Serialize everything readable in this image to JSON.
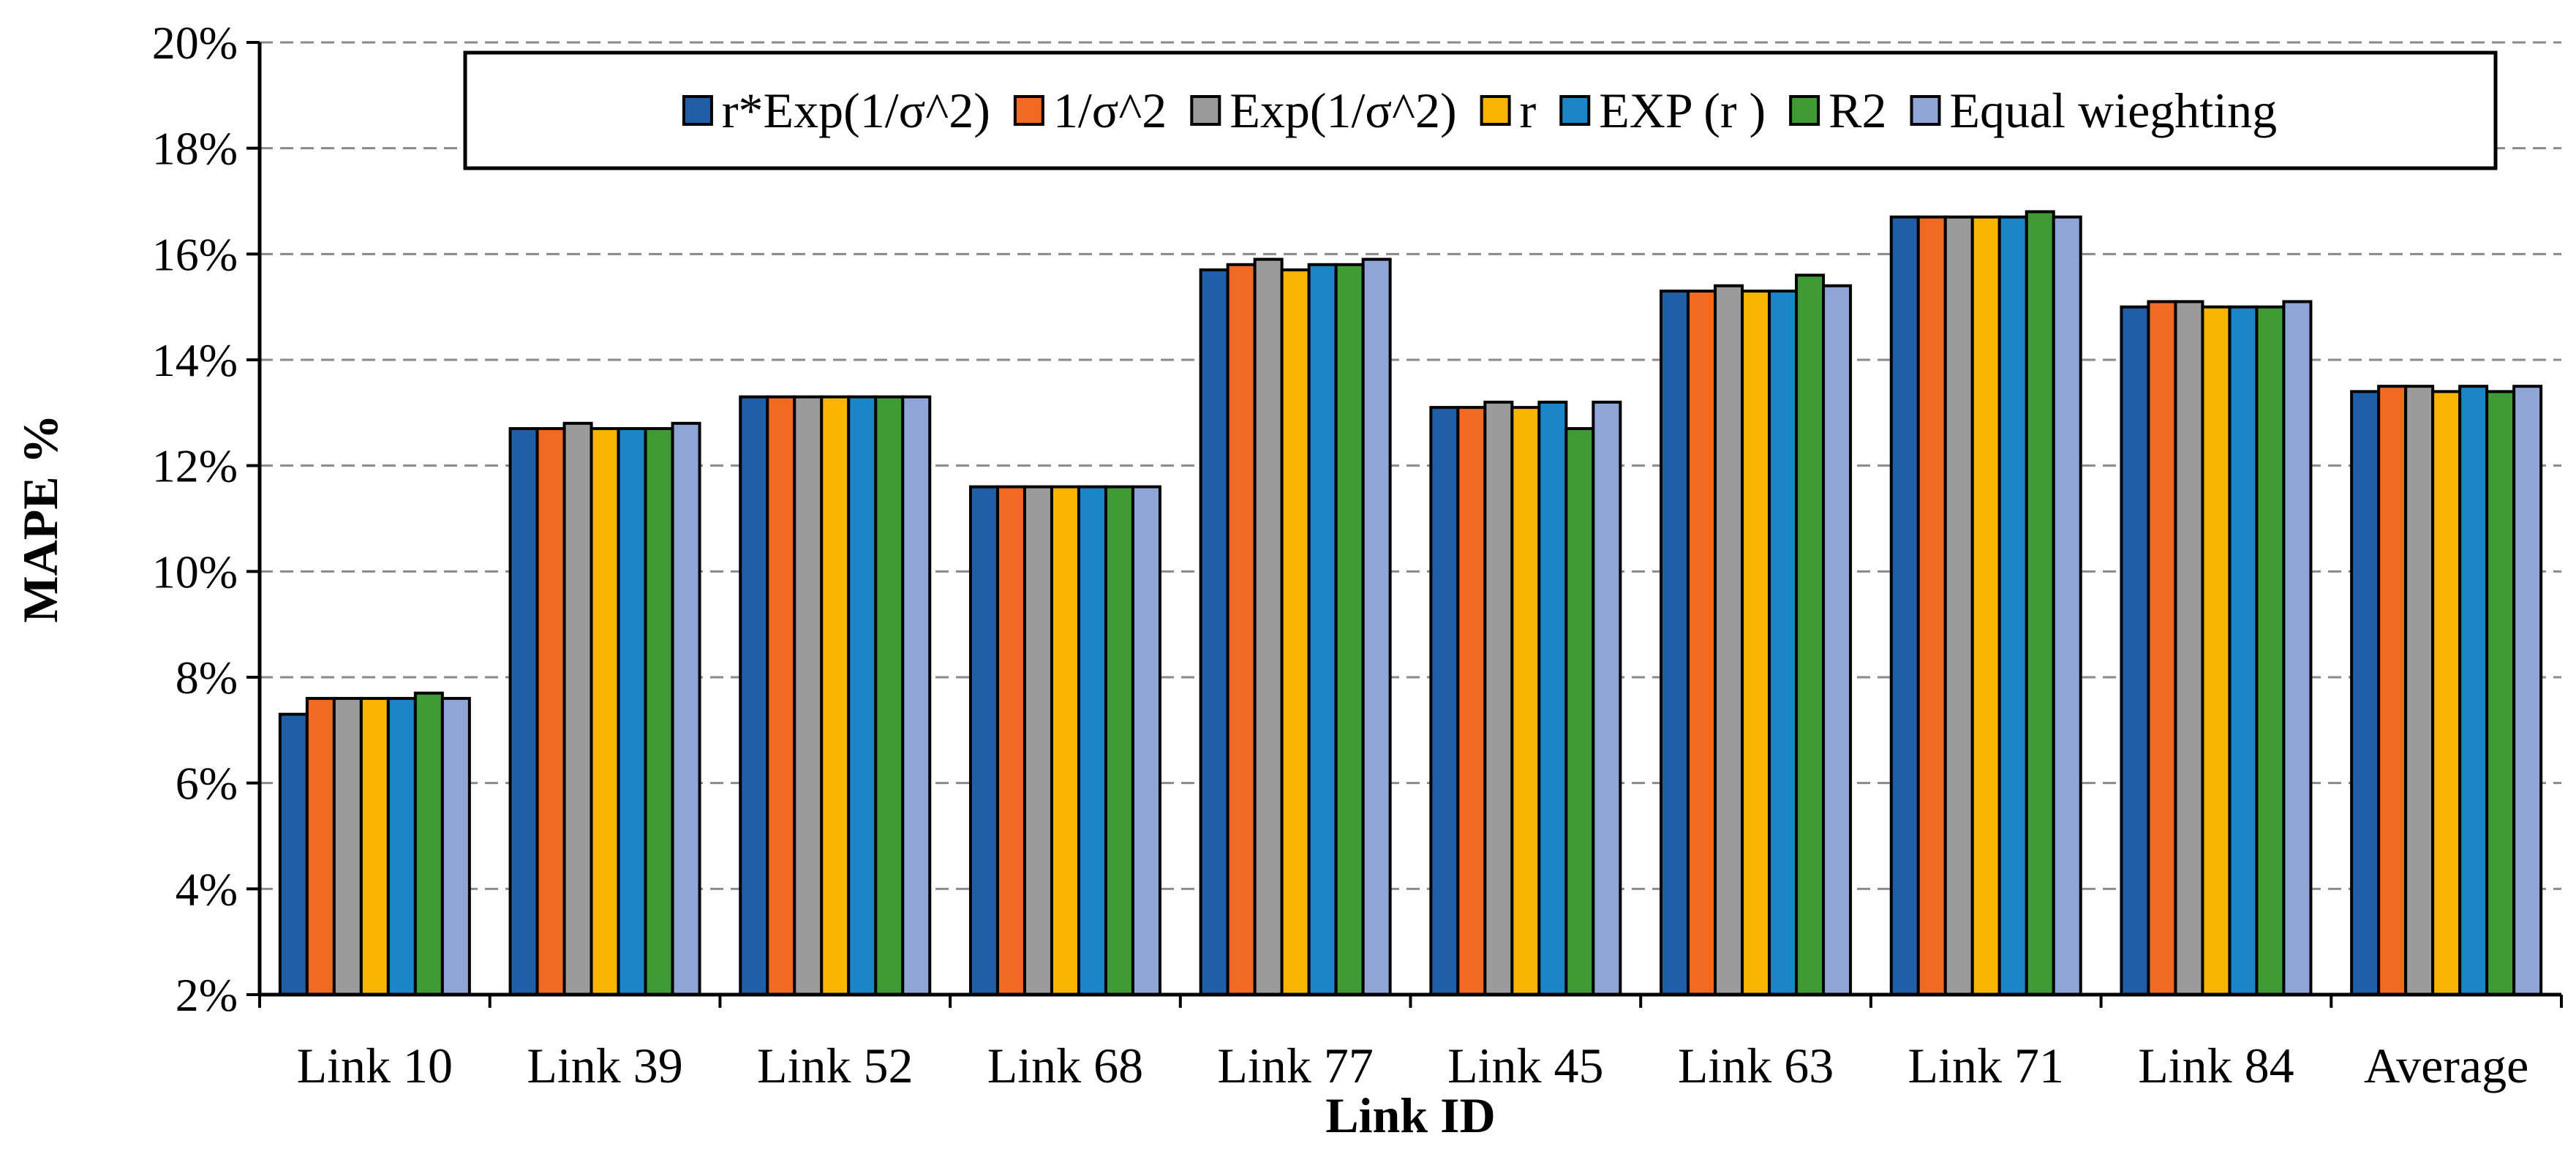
{
  "chart_data": {
    "type": "bar",
    "title": "",
    "xlabel": "Link ID",
    "ylabel": "MAPE %",
    "ylim": [
      0.02,
      0.2
    ],
    "yticks": [
      0.02,
      0.04,
      0.06,
      0.08,
      0.1,
      0.12,
      0.14,
      0.16,
      0.18,
      0.2
    ],
    "ytick_labels": [
      "2%",
      "4%",
      "6%",
      "8%",
      "10%",
      "12%",
      "14%",
      "16%",
      "18%",
      "20%"
    ],
    "grid": "horizontal dashed",
    "legend_position": "top",
    "categories": [
      "Link 10",
      "Link 39",
      "Link 52",
      "Link 68",
      "Link 77",
      "Link 45",
      "Link 63",
      "Link 71",
      "Link 84",
      "Average"
    ],
    "series": [
      {
        "name": "r*Exp(1/σ^2)",
        "color": "#1e5fa8",
        "values": [
          0.073,
          0.127,
          0.133,
          0.116,
          0.157,
          0.131,
          0.153,
          0.167,
          0.15,
          0.134
        ]
      },
      {
        "name": "1/σ^2",
        "color": "#f26a22",
        "values": [
          0.076,
          0.127,
          0.133,
          0.116,
          0.158,
          0.131,
          0.153,
          0.167,
          0.151,
          0.135
        ]
      },
      {
        "name": "Exp(1/σ^2)",
        "color": "#9b9b9b",
        "values": [
          0.076,
          0.128,
          0.133,
          0.116,
          0.159,
          0.132,
          0.154,
          0.167,
          0.151,
          0.135
        ]
      },
      {
        "name": "r",
        "color": "#f7b500",
        "values": [
          0.076,
          0.127,
          0.133,
          0.116,
          0.157,
          0.131,
          0.153,
          0.167,
          0.15,
          0.134
        ]
      },
      {
        "name": "EXP (r )",
        "color": "#1a86c8",
        "values": [
          0.076,
          0.127,
          0.133,
          0.116,
          0.158,
          0.132,
          0.153,
          0.167,
          0.15,
          0.135
        ]
      },
      {
        "name": "R2",
        "color": "#3e9b36",
        "values": [
          0.077,
          0.127,
          0.133,
          0.116,
          0.158,
          0.127,
          0.156,
          0.168,
          0.15,
          0.134
        ]
      },
      {
        "name": "Equal wieghting",
        "color": "#8fa5d8",
        "values": [
          0.076,
          0.128,
          0.133,
          0.116,
          0.159,
          0.132,
          0.154,
          0.167,
          0.151,
          0.135
        ]
      }
    ]
  }
}
